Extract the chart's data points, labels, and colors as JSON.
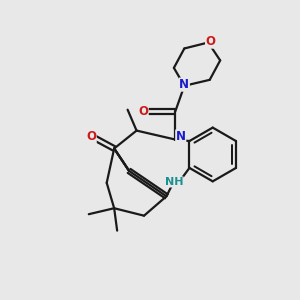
{
  "background_color": "#e8e8e8",
  "atom_color_C": "#1a1a1a",
  "atom_color_N": "#1a1acc",
  "atom_color_O": "#cc1a1a",
  "atom_color_H": "#1a9090",
  "bond_color": "#1a1a1a",
  "bond_width": 1.6,
  "figsize": [
    3.0,
    3.0
  ],
  "dpi": 100,
  "xlim": [
    0,
    10
  ],
  "ylim": [
    0,
    10
  ]
}
